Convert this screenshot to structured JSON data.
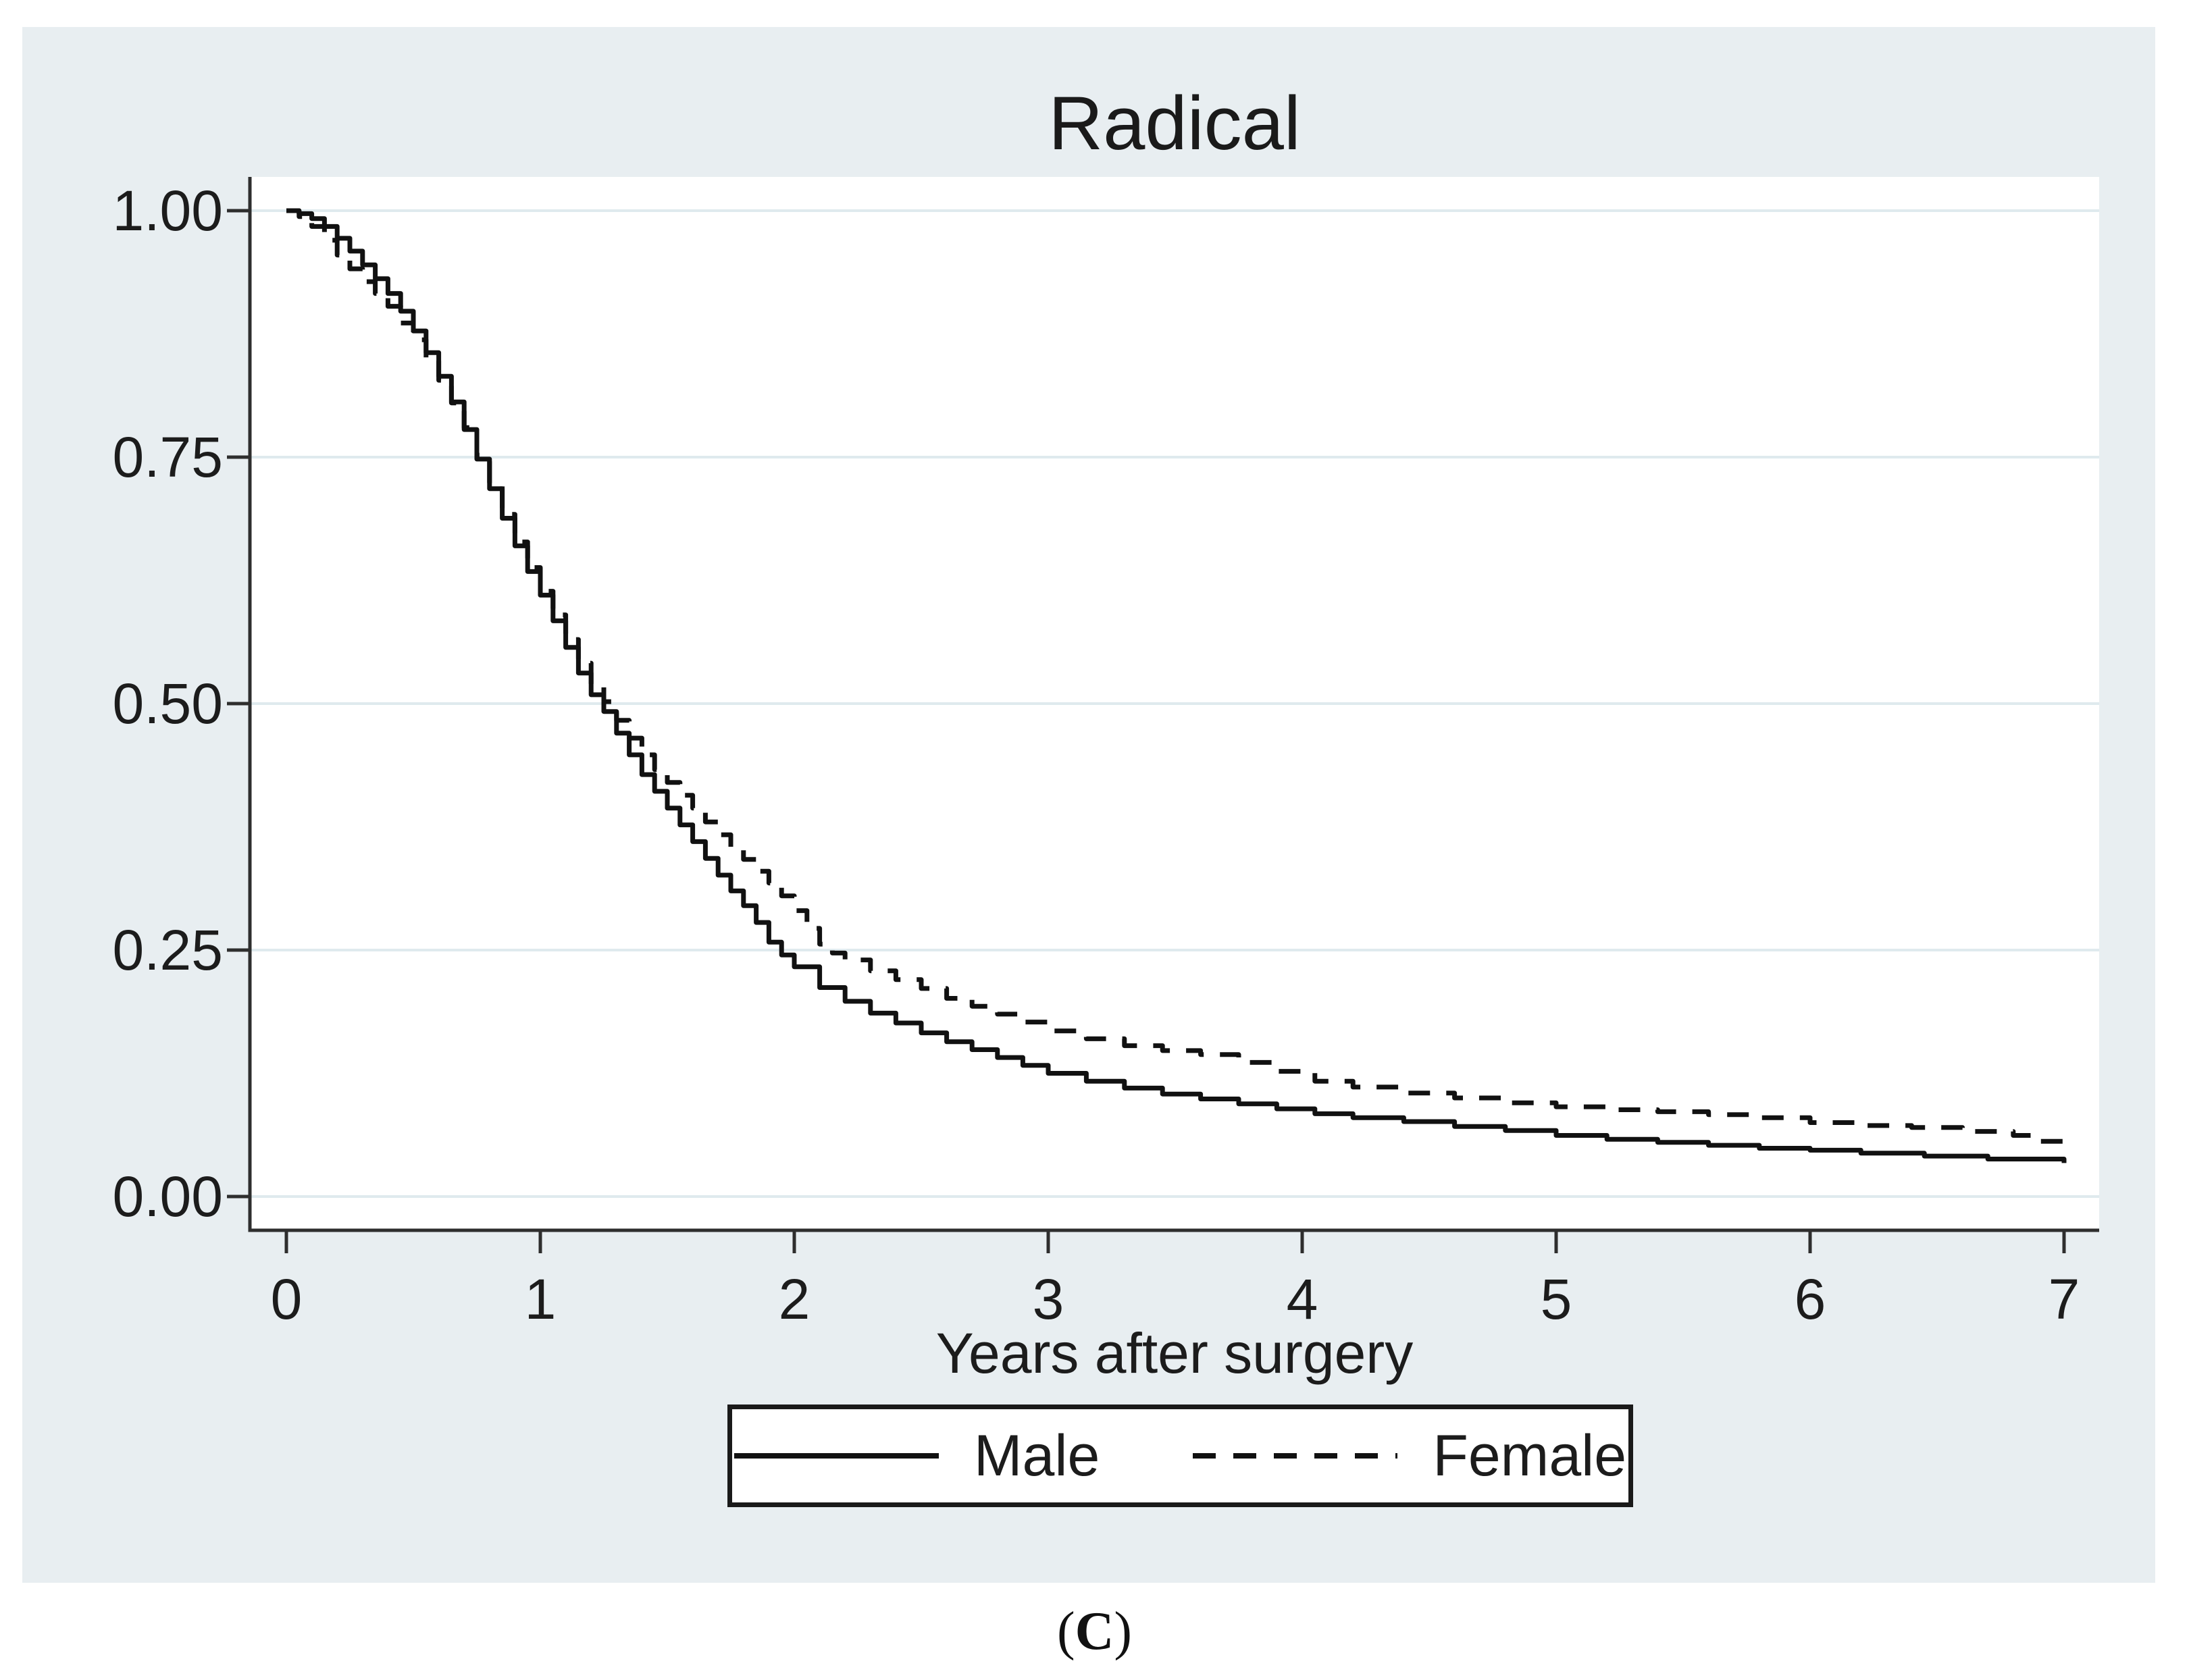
{
  "figure": {
    "title": "Radical",
    "xlabel": "Years after surgery"
  },
  "caption": {
    "open": "(",
    "letter": "C",
    "close": ")"
  },
  "legend": {
    "male_label": "Male",
    "female_label": "Female"
  },
  "chart_data": {
    "type": "line",
    "subtype": "kaplan-meier-step",
    "title": "Radical",
    "xlabel": "Years after surgery",
    "ylabel": "",
    "xlim": [
      0,
      7
    ],
    "ylim": [
      0.0,
      1.0
    ],
    "xticks": [
      0,
      1,
      2,
      3,
      4,
      5,
      6,
      7
    ],
    "yticks": [
      0.0,
      0.25,
      0.5,
      0.75,
      1.0
    ],
    "ytick_labels": [
      "0.00",
      "0.25",
      "0.50",
      "0.75",
      "1.00"
    ],
    "grid": "horizontal",
    "legend_position": "bottom-center",
    "colors": {
      "panel_bg": "#e8eef1",
      "plot_bg": "#ffffff",
      "grid": "#dfeaee",
      "axis": "#2e2e2e",
      "line": "#111111",
      "text": "#1c1c1c"
    },
    "series": [
      {
        "name": "Male",
        "style": "solid",
        "points": [
          [
            0,
            1.0
          ],
          [
            0.05,
            0.997
          ],
          [
            0.1,
            0.992
          ],
          [
            0.15,
            0.984
          ],
          [
            0.2,
            0.972
          ],
          [
            0.25,
            0.959
          ],
          [
            0.3,
            0.945
          ],
          [
            0.35,
            0.931
          ],
          [
            0.4,
            0.916
          ],
          [
            0.45,
            0.898
          ],
          [
            0.5,
            0.878
          ],
          [
            0.55,
            0.856
          ],
          [
            0.6,
            0.832
          ],
          [
            0.65,
            0.806
          ],
          [
            0.7,
            0.778
          ],
          [
            0.75,
            0.748
          ],
          [
            0.8,
            0.718
          ],
          [
            0.85,
            0.688
          ],
          [
            0.9,
            0.66
          ],
          [
            0.95,
            0.634
          ],
          [
            1.0,
            0.61
          ],
          [
            1.05,
            0.584
          ],
          [
            1.1,
            0.557
          ],
          [
            1.15,
            0.531
          ],
          [
            1.2,
            0.509
          ],
          [
            1.25,
            0.492
          ],
          [
            1.3,
            0.47
          ],
          [
            1.35,
            0.448
          ],
          [
            1.4,
            0.428
          ],
          [
            1.45,
            0.411
          ],
          [
            1.5,
            0.394
          ],
          [
            1.55,
            0.377
          ],
          [
            1.6,
            0.36
          ],
          [
            1.65,
            0.343
          ],
          [
            1.7,
            0.326
          ],
          [
            1.75,
            0.31
          ],
          [
            1.8,
            0.295
          ],
          [
            1.85,
            0.278
          ],
          [
            1.9,
            0.258
          ],
          [
            1.95,
            0.245
          ],
          [
            2.0,
            0.233
          ],
          [
            2.1,
            0.212
          ],
          [
            2.2,
            0.198
          ],
          [
            2.3,
            0.186
          ],
          [
            2.4,
            0.176
          ],
          [
            2.5,
            0.166
          ],
          [
            2.6,
            0.157
          ],
          [
            2.7,
            0.149
          ],
          [
            2.8,
            0.141
          ],
          [
            2.9,
            0.133
          ],
          [
            3.0,
            0.125
          ],
          [
            3.15,
            0.117
          ],
          [
            3.3,
            0.11
          ],
          [
            3.45,
            0.104
          ],
          [
            3.6,
            0.099
          ],
          [
            3.75,
            0.094
          ],
          [
            3.9,
            0.089
          ],
          [
            4.05,
            0.084
          ],
          [
            4.2,
            0.08
          ],
          [
            4.4,
            0.076
          ],
          [
            4.6,
            0.071
          ],
          [
            4.8,
            0.067
          ],
          [
            5.0,
            0.062
          ],
          [
            5.2,
            0.058
          ],
          [
            5.4,
            0.055
          ],
          [
            5.6,
            0.052
          ],
          [
            5.8,
            0.049
          ],
          [
            6.0,
            0.047
          ],
          [
            6.2,
            0.044
          ],
          [
            6.45,
            0.041
          ],
          [
            6.7,
            0.038
          ],
          [
            7.0,
            0.034
          ]
        ]
      },
      {
        "name": "Female",
        "style": "dashed",
        "points": [
          [
            0,
            1.0
          ],
          [
            0.05,
            0.994
          ],
          [
            0.1,
            0.984
          ],
          [
            0.15,
            0.97
          ],
          [
            0.2,
            0.955
          ],
          [
            0.25,
            0.941
          ],
          [
            0.3,
            0.928
          ],
          [
            0.35,
            0.916
          ],
          [
            0.4,
            0.903
          ],
          [
            0.45,
            0.886
          ],
          [
            0.5,
            0.869
          ],
          [
            0.55,
            0.849
          ],
          [
            0.6,
            0.828
          ],
          [
            0.65,
            0.805
          ],
          [
            0.7,
            0.78
          ],
          [
            0.75,
            0.752
          ],
          [
            0.8,
            0.722
          ],
          [
            0.85,
            0.692
          ],
          [
            0.9,
            0.664
          ],
          [
            0.95,
            0.638
          ],
          [
            1.0,
            0.614
          ],
          [
            1.05,
            0.59
          ],
          [
            1.1,
            0.565
          ],
          [
            1.15,
            0.541
          ],
          [
            1.2,
            0.52
          ],
          [
            1.25,
            0.502
          ],
          [
            1.3,
            0.483
          ],
          [
            1.35,
            0.465
          ],
          [
            1.4,
            0.448
          ],
          [
            1.45,
            0.433
          ],
          [
            1.5,
            0.42
          ],
          [
            1.55,
            0.407
          ],
          [
            1.6,
            0.394
          ],
          [
            1.65,
            0.38
          ],
          [
            1.7,
            0.367
          ],
          [
            1.75,
            0.354
          ],
          [
            1.8,
            0.342
          ],
          [
            1.85,
            0.33
          ],
          [
            1.9,
            0.318
          ],
          [
            1.95,
            0.305
          ],
          [
            2.0,
            0.29
          ],
          [
            2.05,
            0.272
          ],
          [
            2.1,
            0.256
          ],
          [
            2.15,
            0.247
          ],
          [
            2.2,
            0.24
          ],
          [
            2.3,
            0.229
          ],
          [
            2.4,
            0.22
          ],
          [
            2.5,
            0.211
          ],
          [
            2.6,
            0.201
          ],
          [
            2.7,
            0.193
          ],
          [
            2.8,
            0.185
          ],
          [
            2.9,
            0.177
          ],
          [
            3.0,
            0.168
          ],
          [
            3.15,
            0.16
          ],
          [
            3.3,
            0.153
          ],
          [
            3.45,
            0.148
          ],
          [
            3.6,
            0.144
          ],
          [
            3.75,
            0.136
          ],
          [
            3.9,
            0.127
          ],
          [
            4.05,
            0.117
          ],
          [
            4.2,
            0.111
          ],
          [
            4.4,
            0.105
          ],
          [
            4.6,
            0.1
          ],
          [
            4.8,
            0.095
          ],
          [
            5.0,
            0.091
          ],
          [
            5.2,
            0.088
          ],
          [
            5.4,
            0.086
          ],
          [
            5.6,
            0.083
          ],
          [
            5.8,
            0.08
          ],
          [
            6.0,
            0.075
          ],
          [
            6.2,
            0.072
          ],
          [
            6.4,
            0.07
          ],
          [
            6.6,
            0.066
          ],
          [
            6.8,
            0.062
          ],
          [
            6.9,
            0.056
          ],
          [
            7.0,
            0.052
          ]
        ]
      }
    ]
  }
}
